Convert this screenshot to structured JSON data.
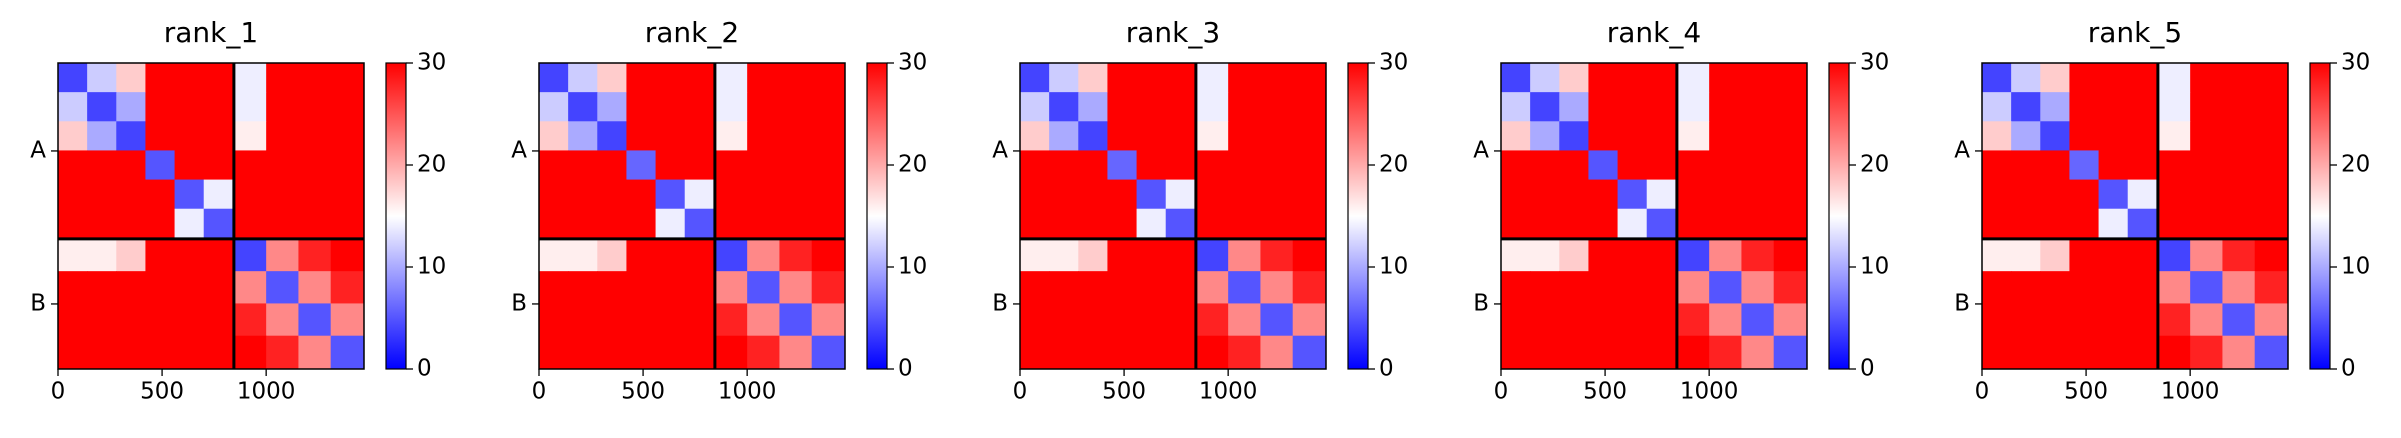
{
  "chart_data": [
    {
      "type": "heatmap",
      "title": "rank_1",
      "colormap": "bwr",
      "x_edges": [
        0,
        140,
        280,
        420,
        560,
        700,
        845,
        1000,
        1155,
        1310,
        1470
      ],
      "y_edges": [
        0,
        140,
        280,
        420,
        560,
        700,
        845,
        1000,
        1155,
        1310,
        1470
      ],
      "z": [
        [
          4,
          12,
          18,
          30,
          30,
          30,
          14,
          30,
          30,
          30
        ],
        [
          12,
          4,
          10,
          30,
          30,
          30,
          14,
          30,
          30,
          30
        ],
        [
          18,
          10,
          4,
          30,
          30,
          30,
          16,
          30,
          30,
          30
        ],
        [
          30,
          30,
          30,
          5,
          30,
          30,
          30,
          30,
          30,
          30
        ],
        [
          30,
          30,
          30,
          30,
          5,
          14,
          30,
          30,
          30,
          30
        ],
        [
          30,
          30,
          30,
          30,
          14,
          5,
          30,
          30,
          30,
          30
        ],
        [
          16,
          16,
          18,
          30,
          30,
          30,
          4,
          22,
          28,
          30
        ],
        [
          30,
          30,
          30,
          30,
          30,
          30,
          22,
          5,
          22,
          28
        ],
        [
          30,
          30,
          30,
          30,
          30,
          30,
          28,
          22,
          5,
          22
        ],
        [
          30,
          30,
          30,
          30,
          30,
          30,
          30,
          28,
          22,
          5
        ]
      ],
      "xlim": [
        0,
        1470
      ],
      "xticks": [
        0,
        500,
        1000
      ],
      "ylim": [
        1470,
        0
      ],
      "yticks": [
        {
          "value": 422.5,
          "label": "A"
        },
        {
          "value": 1157.5,
          "label": "B"
        }
      ],
      "boundaries": [
        845
      ],
      "clim": [
        0,
        30
      ],
      "cticks": [
        0,
        10,
        20,
        30
      ]
    },
    {
      "type": "heatmap",
      "title": "rank_2",
      "colormap": "bwr",
      "x_edges": [
        0,
        140,
        280,
        420,
        560,
        700,
        845,
        1000,
        1155,
        1310,
        1470
      ],
      "y_edges": [
        0,
        140,
        280,
        420,
        560,
        700,
        845,
        1000,
        1155,
        1310,
        1470
      ],
      "z": [
        [
          4,
          12,
          18,
          30,
          30,
          30,
          14,
          30,
          30,
          30
        ],
        [
          12,
          4,
          10,
          30,
          30,
          30,
          14,
          30,
          30,
          30
        ],
        [
          18,
          10,
          4,
          30,
          30,
          30,
          16,
          30,
          30,
          30
        ],
        [
          30,
          30,
          30,
          6,
          30,
          30,
          30,
          30,
          30,
          30
        ],
        [
          30,
          30,
          30,
          30,
          5,
          14,
          30,
          30,
          30,
          30
        ],
        [
          30,
          30,
          30,
          30,
          14,
          5,
          30,
          30,
          30,
          30
        ],
        [
          16,
          16,
          18,
          30,
          30,
          30,
          4,
          22,
          28,
          30
        ],
        [
          30,
          30,
          30,
          30,
          30,
          30,
          22,
          5,
          22,
          28
        ],
        [
          30,
          30,
          30,
          30,
          30,
          30,
          28,
          22,
          5,
          22
        ],
        [
          30,
          30,
          30,
          30,
          30,
          30,
          30,
          28,
          22,
          5
        ]
      ],
      "xlim": [
        0,
        1470
      ],
      "xticks": [
        0,
        500,
        1000
      ],
      "ylim": [
        1470,
        0
      ],
      "yticks": [
        {
          "value": 422.5,
          "label": "A"
        },
        {
          "value": 1157.5,
          "label": "B"
        }
      ],
      "boundaries": [
        845
      ],
      "clim": [
        0,
        30
      ],
      "cticks": [
        0,
        10,
        20,
        30
      ]
    },
    {
      "type": "heatmap",
      "title": "rank_3",
      "colormap": "bwr",
      "x_edges": [
        0,
        140,
        280,
        420,
        560,
        700,
        845,
        1000,
        1155,
        1310,
        1470
      ],
      "y_edges": [
        0,
        140,
        280,
        420,
        560,
        700,
        845,
        1000,
        1155,
        1310,
        1470
      ],
      "z": [
        [
          4,
          12,
          18,
          30,
          30,
          30,
          14,
          30,
          30,
          30
        ],
        [
          12,
          4,
          10,
          30,
          30,
          30,
          14,
          30,
          30,
          30
        ],
        [
          18,
          10,
          4,
          30,
          30,
          30,
          16,
          30,
          30,
          30
        ],
        [
          30,
          30,
          30,
          6,
          30,
          30,
          30,
          30,
          30,
          30
        ],
        [
          30,
          30,
          30,
          30,
          5,
          14,
          30,
          30,
          30,
          30
        ],
        [
          30,
          30,
          30,
          30,
          14,
          5,
          30,
          30,
          30,
          30
        ],
        [
          16,
          16,
          18,
          30,
          30,
          30,
          4,
          22,
          28,
          30
        ],
        [
          30,
          30,
          30,
          30,
          30,
          30,
          22,
          5,
          22,
          28
        ],
        [
          30,
          30,
          30,
          30,
          30,
          30,
          28,
          22,
          5,
          22
        ],
        [
          30,
          30,
          30,
          30,
          30,
          30,
          30,
          28,
          22,
          5
        ]
      ],
      "xlim": [
        0,
        1470
      ],
      "xticks": [
        0,
        500,
        1000
      ],
      "ylim": [
        1470,
        0
      ],
      "yticks": [
        {
          "value": 422.5,
          "label": "A"
        },
        {
          "value": 1157.5,
          "label": "B"
        }
      ],
      "boundaries": [
        845
      ],
      "clim": [
        0,
        30
      ],
      "cticks": [
        0,
        10,
        20,
        30
      ]
    },
    {
      "type": "heatmap",
      "title": "rank_4",
      "colormap": "bwr",
      "x_edges": [
        0,
        140,
        280,
        420,
        560,
        700,
        845,
        1000,
        1155,
        1310,
        1470
      ],
      "y_edges": [
        0,
        140,
        280,
        420,
        560,
        700,
        845,
        1000,
        1155,
        1310,
        1470
      ],
      "z": [
        [
          4,
          12,
          18,
          30,
          30,
          30,
          14,
          30,
          30,
          30
        ],
        [
          12,
          4,
          10,
          30,
          30,
          30,
          14,
          30,
          30,
          30
        ],
        [
          18,
          10,
          4,
          30,
          30,
          30,
          16,
          30,
          30,
          30
        ],
        [
          30,
          30,
          30,
          5,
          30,
          30,
          30,
          30,
          30,
          30
        ],
        [
          30,
          30,
          30,
          30,
          5,
          14,
          30,
          30,
          30,
          30
        ],
        [
          30,
          30,
          30,
          30,
          14,
          5,
          30,
          30,
          30,
          30
        ],
        [
          16,
          16,
          18,
          30,
          30,
          30,
          4,
          22,
          28,
          30
        ],
        [
          30,
          30,
          30,
          30,
          30,
          30,
          22,
          5,
          22,
          28
        ],
        [
          30,
          30,
          30,
          30,
          30,
          30,
          28,
          22,
          5,
          22
        ],
        [
          30,
          30,
          30,
          30,
          30,
          30,
          30,
          28,
          22,
          5
        ]
      ],
      "xlim": [
        0,
        1470
      ],
      "xticks": [
        0,
        500,
        1000
      ],
      "ylim": [
        1470,
        0
      ],
      "yticks": [
        {
          "value": 422.5,
          "label": "A"
        },
        {
          "value": 1157.5,
          "label": "B"
        }
      ],
      "boundaries": [
        845
      ],
      "clim": [
        0,
        30
      ],
      "cticks": [
        0,
        10,
        20,
        30
      ]
    },
    {
      "type": "heatmap",
      "title": "rank_5",
      "colormap": "bwr",
      "x_edges": [
        0,
        140,
        280,
        420,
        560,
        700,
        845,
        1000,
        1155,
        1310,
        1470
      ],
      "y_edges": [
        0,
        140,
        280,
        420,
        560,
        700,
        845,
        1000,
        1155,
        1310,
        1470
      ],
      "z": [
        [
          4,
          12,
          18,
          30,
          30,
          30,
          14,
          30,
          30,
          30
        ],
        [
          12,
          4,
          10,
          30,
          30,
          30,
          14,
          30,
          30,
          30
        ],
        [
          18,
          10,
          4,
          30,
          30,
          30,
          16,
          30,
          30,
          30
        ],
        [
          30,
          30,
          30,
          6,
          30,
          30,
          30,
          30,
          30,
          30
        ],
        [
          30,
          30,
          30,
          30,
          5,
          14,
          30,
          30,
          30,
          30
        ],
        [
          30,
          30,
          30,
          30,
          14,
          5,
          30,
          30,
          30,
          30
        ],
        [
          16,
          16,
          18,
          30,
          30,
          30,
          4,
          22,
          28,
          30
        ],
        [
          30,
          30,
          30,
          30,
          30,
          30,
          22,
          5,
          22,
          28
        ],
        [
          30,
          30,
          30,
          30,
          30,
          30,
          28,
          22,
          5,
          22
        ],
        [
          30,
          30,
          30,
          30,
          30,
          30,
          30,
          28,
          22,
          5
        ]
      ],
      "xlim": [
        0,
        1470
      ],
      "xticks": [
        0,
        500,
        1000
      ],
      "ylim": [
        1470,
        0
      ],
      "yticks": [
        {
          "value": 422.5,
          "label": "A"
        },
        {
          "value": 1157.5,
          "label": "B"
        }
      ],
      "boundaries": [
        845
      ],
      "clim": [
        0,
        30
      ],
      "cticks": [
        0,
        10,
        20,
        30
      ]
    }
  ]
}
